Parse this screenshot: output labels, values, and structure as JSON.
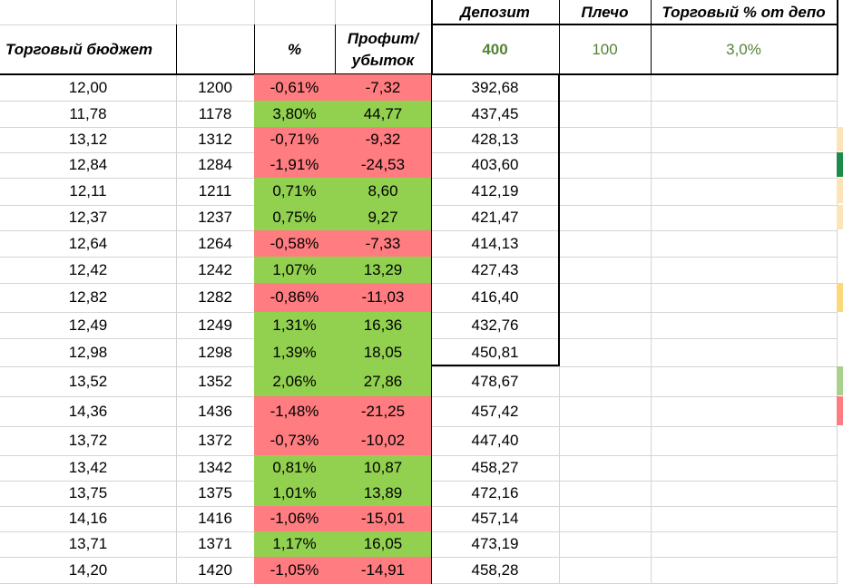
{
  "header": {
    "budget": "Торговый бюджет",
    "pct": "%",
    "profit_line1": "Профит/",
    "profit_line2": "убыток",
    "deposit": "Депозит",
    "leverage": "Плечо",
    "trade_pct": "Торговый % от депо"
  },
  "params": {
    "deposit": "400",
    "leverage": "100",
    "trade_pct": "3,0%"
  },
  "columns": [
    "budget",
    "position",
    "pct",
    "pnl",
    "deposit"
  ],
  "rows": [
    {
      "budget": "12,00",
      "position": "1200",
      "pct": "-0,61%",
      "pnl": "-7,32",
      "deposit": "392,68",
      "status": "loss"
    },
    {
      "budget": "11,78",
      "position": "1178",
      "pct": "3,80%",
      "pnl": "44,77",
      "deposit": "437,45",
      "status": "gain"
    },
    {
      "budget": "13,12",
      "position": "1312",
      "pct": "-0,71%",
      "pnl": "-9,32",
      "deposit": "428,13",
      "status": "loss"
    },
    {
      "budget": "12,84",
      "position": "1284",
      "pct": "-1,91%",
      "pnl": "-24,53",
      "deposit": "403,60",
      "status": "loss"
    },
    {
      "budget": "12,11",
      "position": "1211",
      "pct": "0,71%",
      "pnl": "8,60",
      "deposit": "412,19",
      "status": "gain"
    },
    {
      "budget": "12,37",
      "position": "1237",
      "pct": "0,75%",
      "pnl": "9,27",
      "deposit": "421,47",
      "status": "gain"
    },
    {
      "budget": "12,64",
      "position": "1264",
      "pct": "-0,58%",
      "pnl": "-7,33",
      "deposit": "414,13",
      "status": "loss"
    },
    {
      "budget": "12,42",
      "position": "1242",
      "pct": "1,07%",
      "pnl": "13,29",
      "deposit": "427,43",
      "status": "gain"
    },
    {
      "budget": "12,82",
      "position": "1282",
      "pct": "-0,86%",
      "pnl": "-11,03",
      "deposit": "416,40",
      "status": "loss"
    },
    {
      "budget": "12,49",
      "position": "1249",
      "pct": "1,31%",
      "pnl": "16,36",
      "deposit": "432,76",
      "status": "gain"
    },
    {
      "budget": "12,98",
      "position": "1298",
      "pct": "1,39%",
      "pnl": "18,05",
      "deposit": "450,81",
      "status": "gain"
    },
    {
      "budget": "13,52",
      "position": "1352",
      "pct": "2,06%",
      "pnl": "27,86",
      "deposit": "478,67",
      "status": "gain"
    },
    {
      "budget": "14,36",
      "position": "1436",
      "pct": "-1,48%",
      "pnl": "-21,25",
      "deposit": "457,42",
      "status": "loss"
    },
    {
      "budget": "13,72",
      "position": "1372",
      "pct": "-0,73%",
      "pnl": "-10,02",
      "deposit": "447,40",
      "status": "loss"
    },
    {
      "budget": "13,42",
      "position": "1342",
      "pct": "0,81%",
      "pnl": "10,87",
      "deposit": "458,27",
      "status": "gain"
    },
    {
      "budget": "13,75",
      "position": "1375",
      "pct": "1,01%",
      "pnl": "13,89",
      "deposit": "472,16",
      "status": "gain"
    },
    {
      "budget": "14,16",
      "position": "1416",
      "pct": "-1,06%",
      "pnl": "-15,01",
      "deposit": "457,14",
      "status": "loss"
    },
    {
      "budget": "13,71",
      "position": "1371",
      "pct": "1,17%",
      "pnl": "16,05",
      "deposit": "473,19",
      "status": "gain"
    },
    {
      "budget": "14,20",
      "position": "1420",
      "pct": "-1,05%",
      "pnl": "-14,91",
      "deposit": "458,28",
      "status": "loss"
    }
  ],
  "colors": {
    "loss_fill": "#ff7c80",
    "gain_fill": "#92d050",
    "param_text": "#548235",
    "gridline": "#d4d4d4",
    "border": "#000000"
  }
}
